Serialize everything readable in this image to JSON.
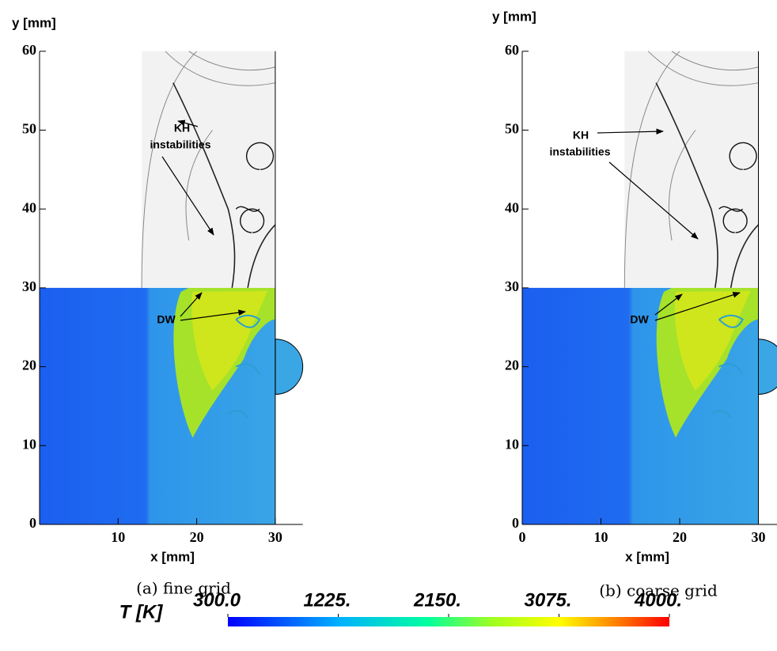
{
  "panels": [
    {
      "ylabel": "y [mm]",
      "xlabel": "x [mm]",
      "xlim": [
        0,
        33.5
      ],
      "ylim": [
        0,
        60
      ],
      "xticks": [
        10,
        20,
        30
      ],
      "yticks": [
        0,
        10,
        20,
        30,
        40,
        50,
        60
      ],
      "kh_label": [
        "KH",
        "instabilities"
      ],
      "dw_label": "DW",
      "caption": "(a) fine grid"
    },
    {
      "ylabel": "y [mm]",
      "xlabel": "x [mm]",
      "xlim": [
        0,
        32.4
      ],
      "ylim": [
        0,
        60
      ],
      "xticks": [
        0,
        10,
        20,
        30
      ],
      "yticks": [
        0,
        10,
        20,
        30,
        40,
        50,
        60
      ],
      "kh_label": [
        "KH",
        "instabilities"
      ],
      "dw_label": "DW",
      "caption": "(b) coarse grid"
    }
  ],
  "colorbar": {
    "label": "T [K]",
    "range": [
      300,
      4000
    ],
    "ticks": [
      {
        "value": 300,
        "label": "300.0"
      },
      {
        "value": 1225,
        "label": "1225."
      },
      {
        "value": 2150,
        "label": "2150."
      },
      {
        "value": 3075,
        "label": "3075."
      },
      {
        "value": 4000,
        "label": "4000."
      }
    ]
  }
}
